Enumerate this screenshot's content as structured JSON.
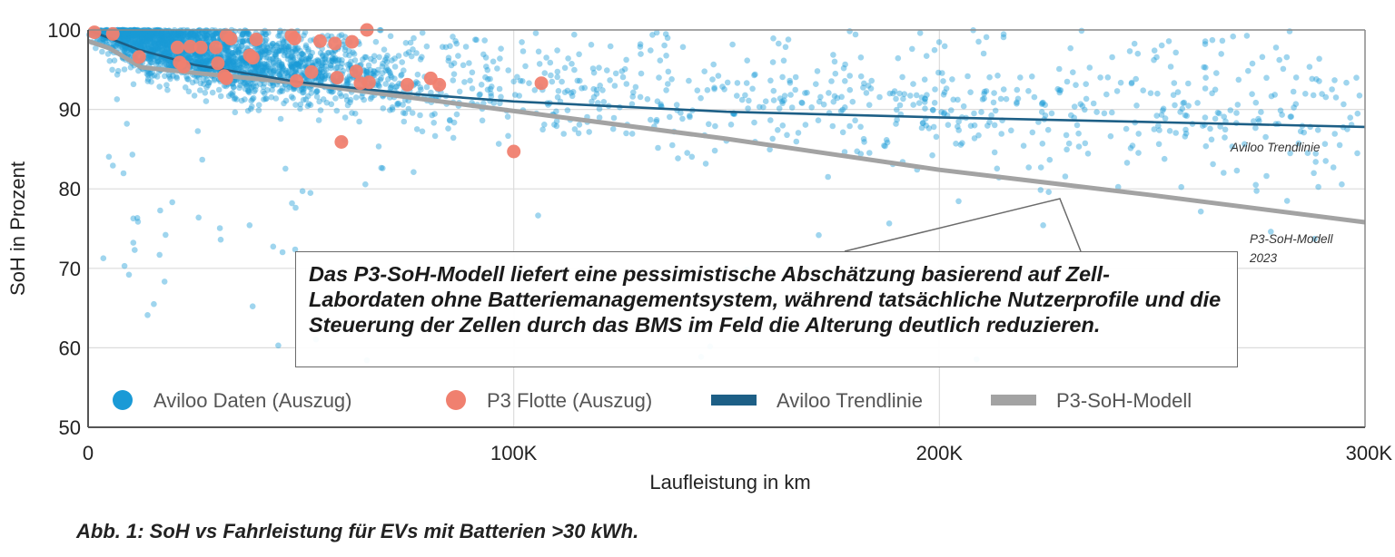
{
  "chart_data": {
    "type": "scatter",
    "xlabel": "Laufleistung in km",
    "ylabel": "SoH in Prozent",
    "xlim": [
      0,
      300000
    ],
    "ylim": [
      50,
      100
    ],
    "x_ticks": [
      0,
      100000,
      200000,
      300000
    ],
    "x_tick_labels": [
      "0",
      "100K",
      "200K",
      "300K"
    ],
    "y_ticks": [
      50,
      60,
      70,
      80,
      90,
      100
    ],
    "y_tick_labels": [
      "50",
      "60",
      "70",
      "80",
      "90",
      "100"
    ],
    "grid": true,
    "legend_position": "bottom-left",
    "legend": [
      {
        "label": "Aviloo Daten (Auszug)",
        "marker": "circle",
        "color": "#1a9ad6"
      },
      {
        "label": "P3 Flotte (Auszug)",
        "marker": "circle",
        "color": "#f0806f"
      },
      {
        "label": "Aviloo Trendlinie",
        "marker": "line",
        "color": "#1d5f86"
      },
      {
        "label": "P3-SoH-Modell",
        "marker": "line",
        "color": "#a3a3a3"
      }
    ],
    "series": [
      {
        "name": "Aviloo Daten (Auszug)",
        "type": "scatter",
        "color": "#1a9ad6",
        "note_density_regions": [
          {
            "x_range": [
              0,
              90000
            ],
            "y_center": 96,
            "y_spread": 4,
            "share": "dense"
          },
          {
            "x_range": [
              90000,
              300000
            ],
            "y_center": 89,
            "y_spread": 6,
            "share": "sparse"
          }
        ]
      },
      {
        "name": "P3 Flotte (Auszug)",
        "type": "scatter",
        "color": "#f0806f",
        "x": [
          1500,
          5800,
          12000,
          21500,
          22500,
          21000,
          24000,
          26500,
          30000,
          32500,
          30500,
          32000,
          32500,
          33500,
          38000,
          38700,
          39500,
          47800,
          48500,
          49000,
          52500,
          54500,
          58000,
          58500,
          59500,
          62000,
          63000,
          64000,
          65500,
          66000,
          75000,
          80500,
          82500,
          106500,
          100000
        ],
        "y": [
          99.7,
          99.5,
          96.6,
          95.9,
          95.4,
          97.8,
          97.9,
          97.8,
          97.8,
          99.3,
          95.8,
          94.2,
          93.9,
          98.9,
          96.8,
          96.5,
          98.8,
          99.3,
          98.9,
          93.6,
          94.7,
          98.6,
          98.3,
          94.0,
          85.9,
          98.5,
          94.8,
          93.3,
          100.0,
          93.4,
          93.1,
          93.9,
          93.1,
          93.3,
          84.7
        ]
      },
      {
        "name": "Aviloo Trendlinie",
        "type": "line",
        "color": "#1d5f86",
        "x": [
          0,
          12000,
          25000,
          50000,
          75000,
          100000,
          150000,
          200000,
          250000,
          300000
        ],
        "y": [
          100.0,
          97.5,
          95.6,
          93.4,
          92.0,
          91.0,
          89.7,
          89.0,
          88.4,
          87.8
        ]
      },
      {
        "name": "P3-SoH-Modell",
        "type": "line",
        "color": "#a3a3a3",
        "x": [
          0,
          5000,
          12500,
          25000,
          50000,
          100000,
          150000,
          200000,
          250000,
          300000
        ],
        "y": [
          98.6,
          97.7,
          95.3,
          94.6,
          93.3,
          89.8,
          86.3,
          82.4,
          79.2,
          75.8
        ]
      }
    ],
    "annotations": {
      "trend_label": "Aviloo Trendlinie",
      "model_label_line1": "P3-SoH-Modell",
      "model_label_line2": "2023",
      "callout_text": " Das P3-SoH-Modell liefert eine pessimistische Abschätzung basierend auf Zell-Labordaten ohne Batteriemanagementsystem, während tatsächliche Nutzerprofile und die Steuerung der Zellen durch das BMS im Feld die Alterung deutlich reduzieren.",
      "callout_pointer_at": [
        228500,
        80.3
      ]
    }
  },
  "caption": "Abb. 1: SoH vs Fahrleistung für EVs mit Batterien >30 kWh."
}
